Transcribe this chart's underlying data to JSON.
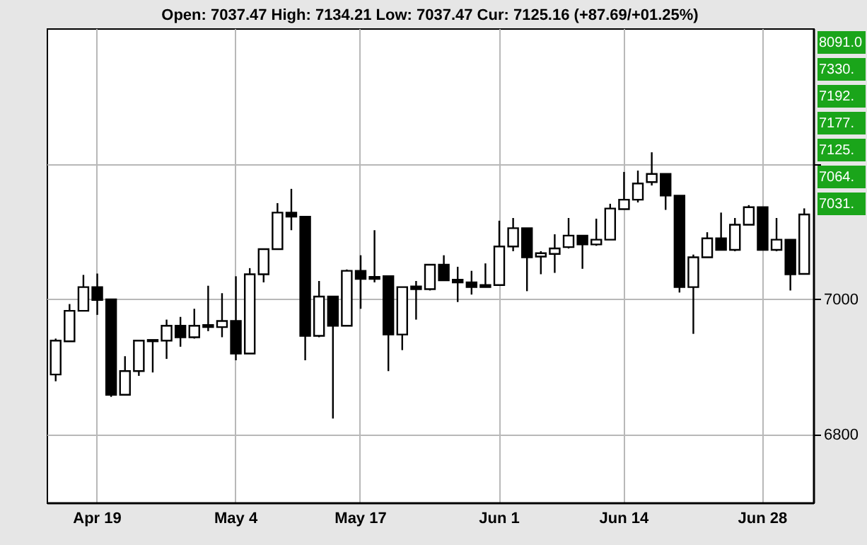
{
  "chart_data": {
    "type": "candlestick",
    "subtitle": "Open: 7037.47 High: 7134.21 Low: 7037.47 Cur: 7125.16 (+87.69/+01.25%)",
    "categories": [
      null,
      null,
      null,
      "Apr 19",
      null,
      null,
      null,
      null,
      null,
      null,
      null,
      null,
      null,
      "May 4",
      null,
      null,
      null,
      null,
      null,
      null,
      null,
      null,
      "May 17",
      null,
      null,
      null,
      null,
      null,
      null,
      null,
      null,
      null,
      "Jun 1",
      null,
      null,
      null,
      null,
      null,
      null,
      null,
      null,
      "Jun 14",
      null,
      null,
      null,
      null,
      null,
      null,
      null,
      null,
      null,
      "Jun 28",
      null,
      null,
      null
    ],
    "ohlc": [
      [
        6889,
        6942,
        6879,
        6939
      ],
      [
        6938,
        6993,
        6938,
        6983
      ],
      [
        6983,
        7036,
        6983,
        7018
      ],
      [
        7018,
        7038,
        6977,
        6999
      ],
      [
        7000,
        7000,
        6856,
        6859
      ],
      [
        6859,
        6916,
        6859,
        6894
      ],
      [
        6894,
        6940,
        6887,
        6939
      ],
      [
        6938,
        6940,
        6892,
        6940
      ],
      [
        6939,
        6970,
        6912,
        6961
      ],
      [
        6961,
        6974,
        6930,
        6944
      ],
      [
        6944,
        6986,
        6942,
        6961
      ],
      [
        6962,
        7020,
        6953,
        6959
      ],
      [
        6959,
        7009,
        6944,
        6968
      ],
      [
        6968,
        7034,
        6910,
        6920
      ],
      [
        6920,
        7046,
        6920,
        7037
      ],
      [
        7037,
        7074,
        7025,
        7074
      ],
      [
        7074,
        7142,
        7074,
        7128
      ],
      [
        7128,
        7163,
        7102,
        7122
      ],
      [
        7122,
        7122,
        6910,
        6946
      ],
      [
        6946,
        7027,
        6944,
        7004
      ],
      [
        7004,
        7004,
        6824,
        6961
      ],
      [
        6961,
        7044,
        6961,
        7042
      ],
      [
        7042,
        7065,
        6986,
        7030
      ],
      [
        7033,
        7102,
        7025,
        7030
      ],
      [
        7034,
        7034,
        6894,
        6948
      ],
      [
        6948,
        7018,
        6925,
        7018
      ],
      [
        7019,
        7027,
        6970,
        7015
      ],
      [
        7015,
        7052,
        7013,
        7051
      ],
      [
        7051,
        7065,
        7028,
        7028
      ],
      [
        7029,
        7048,
        6996,
        7025
      ],
      [
        7025,
        7042,
        7007,
        7018
      ],
      [
        7021,
        7053,
        7018,
        7018
      ],
      [
        7021,
        7116,
        7021,
        7078
      ],
      [
        7078,
        7120,
        7071,
        7105
      ],
      [
        7105,
        7105,
        7012,
        7062
      ],
      [
        7063,
        7071,
        7037,
        7068
      ],
      [
        7067,
        7096,
        7039,
        7075
      ],
      [
        7077,
        7120,
        7075,
        7094
      ],
      [
        7094,
        7094,
        7045,
        7081
      ],
      [
        7081,
        7119,
        7079,
        7088
      ],
      [
        7088,
        7141,
        7088,
        7134
      ],
      [
        7133,
        7188,
        7133,
        7147
      ],
      [
        7147,
        7190,
        7143,
        7171
      ],
      [
        7173,
        7217,
        7168,
        7185
      ],
      [
        7185,
        7185,
        7132,
        7153
      ],
      [
        7153,
        7153,
        7010,
        7018
      ],
      [
        7018,
        7066,
        6949,
        7062
      ],
      [
        7062,
        7099,
        7062,
        7090
      ],
      [
        7090,
        7128,
        7073,
        7073
      ],
      [
        7073,
        7120,
        7071,
        7110
      ],
      [
        7110,
        7139,
        7110,
        7136
      ],
      [
        7136,
        7136,
        7073,
        7073
      ],
      [
        7073,
        7120,
        7071,
        7088
      ],
      [
        7088,
        7088,
        7013,
        7037
      ],
      [
        7037.47,
        7134.21,
        7037.47,
        7125.16
      ]
    ],
    "ylim": [
      6700,
      7400
    ],
    "yticks": [
      6800,
      7000,
      {
        "value": 7200,
        "label": null
      }
    ],
    "grid": true,
    "annotations": [
      "8091.0",
      "7330.",
      "7192.",
      "7177.",
      "7125.",
      "7064.",
      "7031."
    ]
  }
}
